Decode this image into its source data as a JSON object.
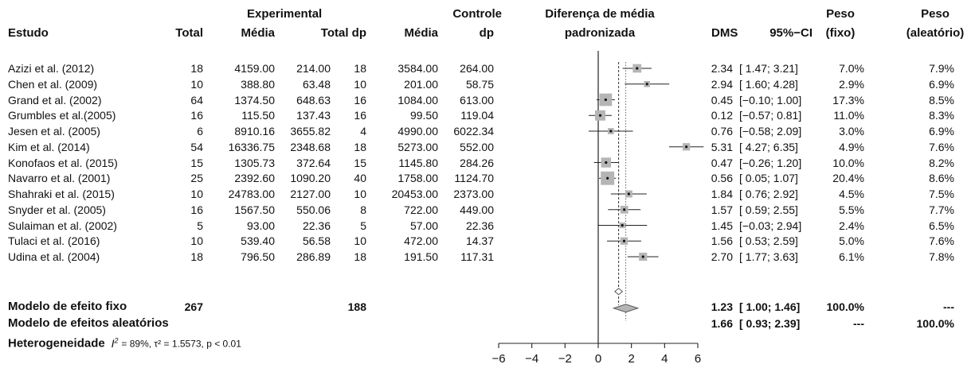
{
  "header": {
    "estudo": "Estudo",
    "group_exp": "Experimental",
    "total": "Total",
    "media": "Média",
    "total_dp": "Total dp",
    "media2": "Média",
    "controle_line1": "Controle",
    "controle_line2": "dp",
    "plot_line1": "Diferença de média",
    "plot_line2": "padronizada",
    "dms": "DMS",
    "ci": "95%−CI",
    "peso_fixo_1": "Peso",
    "peso_fixo_2": "(fixo)",
    "peso_aleat_1": "Peso",
    "peso_aleat_2": "(aleatório)"
  },
  "summary": {
    "fixed_label": "Modelo de efeito fixo",
    "fixed_total_exp": "267",
    "fixed_total_ctrl": "188",
    "fixed_dms": "1.23",
    "fixed_ci": "[ 1.00; 1.46]",
    "fixed_w_fixo": "100.0%",
    "fixed_w_aleat": "---",
    "random_label": "Modelo de efeitos aleatórios",
    "random_dms": "1.66",
    "random_ci": "[ 0.93; 2.39]",
    "random_w_fixo": "---",
    "random_w_aleat": "100.0%",
    "het_prefix": "Heterogeneidade",
    "het_stats": "= 89%, τ² = 1.5573, p < 0.01"
  },
  "chart_data": {
    "type": "forest",
    "xaxis": {
      "range": [
        -6,
        6
      ],
      "ticks": [
        -6,
        -4,
        -2,
        0,
        2,
        4,
        6
      ]
    },
    "fixed_effect": {
      "est": 1.23,
      "lo": 1.0,
      "hi": 1.46
    },
    "random_effect": {
      "est": 1.66,
      "lo": 0.93,
      "hi": 2.39
    },
    "studies": [
      {
        "name": "Azizi et al. (2012)",
        "n_e": "18",
        "m_e": "4159.00",
        "sd_e": "214.00",
        "n_c": "18",
        "m_c": "3584.00",
        "sd_c": "264.00",
        "dms": "2.34",
        "ci": "[ 1.47; 3.21]",
        "w_fixo": "7.0%",
        "w_aleat": "7.9%",
        "est": 2.34,
        "lo": 1.47,
        "hi": 3.21,
        "w": 7.0
      },
      {
        "name": "Chen et al. (2009)",
        "n_e": "10",
        "m_e": "388.80",
        "sd_e": "63.48",
        "n_c": "10",
        "m_c": "201.00",
        "sd_c": "58.75",
        "dms": "2.94",
        "ci": "[ 1.60; 4.28]",
        "w_fixo": "2.9%",
        "w_aleat": "6.9%",
        "est": 2.94,
        "lo": 1.6,
        "hi": 4.28,
        "w": 2.9
      },
      {
        "name": "Grand et al. (2002)",
        "n_e": "64",
        "m_e": "1374.50",
        "sd_e": "648.63",
        "n_c": "16",
        "m_c": "1084.00",
        "sd_c": "613.00",
        "dms": "0.45",
        "ci": "[−0.10; 1.00]",
        "w_fixo": "17.3%",
        "w_aleat": "8.5%",
        "est": 0.45,
        "lo": -0.1,
        "hi": 1.0,
        "w": 17.3
      },
      {
        "name": "Grumbles et al.(2005)",
        "n_e": "16",
        "m_e": "115.50",
        "sd_e": "137.43",
        "n_c": "16",
        "m_c": "99.50",
        "sd_c": "119.04",
        "dms": "0.12",
        "ci": "[−0.57; 0.81]",
        "w_fixo": "11.0%",
        "w_aleat": "8.3%",
        "est": 0.12,
        "lo": -0.57,
        "hi": 0.81,
        "w": 11.0
      },
      {
        "name": "Jesen et al. (2005)",
        "n_e": "6",
        "m_e": "8910.16",
        "sd_e": "3655.82",
        "n_c": "4",
        "m_c": "4990.00",
        "sd_c": "6022.34",
        "dms": "0.76",
        "ci": "[−0.58; 2.09]",
        "w_fixo": "3.0%",
        "w_aleat": "6.9%",
        "est": 0.76,
        "lo": -0.58,
        "hi": 2.09,
        "w": 3.0
      },
      {
        "name": "Kim et al. (2014)",
        "n_e": "54",
        "m_e": "16336.75",
        "sd_e": "2348.68",
        "n_c": "18",
        "m_c": "5273.00",
        "sd_c": "552.00",
        "dms": "5.31",
        "ci": "[ 4.27; 6.35]",
        "w_fixo": "4.9%",
        "w_aleat": "7.6%",
        "est": 5.31,
        "lo": 4.27,
        "hi": 6.35,
        "w": 4.9
      },
      {
        "name": "Konofaos et al. (2015)",
        "n_e": "15",
        "m_e": "1305.73",
        "sd_e": "372.64",
        "n_c": "15",
        "m_c": "1145.80",
        "sd_c": "284.26",
        "dms": "0.47",
        "ci": "[−0.26; 1.20]",
        "w_fixo": "10.0%",
        "w_aleat": "8.2%",
        "est": 0.47,
        "lo": -0.26,
        "hi": 1.2,
        "w": 10.0
      },
      {
        "name": "Navarro et al. (2001)",
        "n_e": "25",
        "m_e": "2392.60",
        "sd_e": "1090.20",
        "n_c": "40",
        "m_c": "1758.00",
        "sd_c": "1124.70",
        "dms": "0.56",
        "ci": "[ 0.05; 1.07]",
        "w_fixo": "20.4%",
        "w_aleat": "8.6%",
        "est": 0.56,
        "lo": 0.05,
        "hi": 1.07,
        "w": 20.4
      },
      {
        "name": "Shahraki et al. (2015)",
        "n_e": "10",
        "m_e": "24783.00",
        "sd_e": "2127.00",
        "n_c": "10",
        "m_c": "20453.00",
        "sd_c": "2373.00",
        "dms": "1.84",
        "ci": "[ 0.76; 2.92]",
        "w_fixo": "4.5%",
        "w_aleat": "7.5%",
        "est": 1.84,
        "lo": 0.76,
        "hi": 2.92,
        "w": 4.5
      },
      {
        "name": "Snyder et al. (2005)",
        "n_e": "16",
        "m_e": "1567.50",
        "sd_e": "550.06",
        "n_c": "8",
        "m_c": "722.00",
        "sd_c": "449.00",
        "dms": "1.57",
        "ci": "[ 0.59; 2.55]",
        "w_fixo": "5.5%",
        "w_aleat": "7.7%",
        "est": 1.57,
        "lo": 0.59,
        "hi": 2.55,
        "w": 5.5
      },
      {
        "name": "Sulaiman et al. (2002)",
        "n_e": "5",
        "m_e": "93.00",
        "sd_e": "22.36",
        "n_c": "5",
        "m_c": "57.00",
        "sd_c": "22.36",
        "dms": "1.45",
        "ci": "[−0.03; 2.94]",
        "w_fixo": "2.4%",
        "w_aleat": "6.5%",
        "est": 1.45,
        "lo": -0.03,
        "hi": 2.94,
        "w": 2.4
      },
      {
        "name": "Tulaci et al. (2016)",
        "n_e": "10",
        "m_e": "539.40",
        "sd_e": "56.58",
        "n_c": "10",
        "m_c": "472.00",
        "sd_c": "14.37",
        "dms": "1.56",
        "ci": "[ 0.53; 2.59]",
        "w_fixo": "5.0%",
        "w_aleat": "7.6%",
        "est": 1.56,
        "lo": 0.53,
        "hi": 2.59,
        "w": 5.0
      },
      {
        "name": "Udina et al. (2004)",
        "n_e": "18",
        "m_e": "796.50",
        "sd_e": "286.89",
        "n_c": "18",
        "m_c": "191.50",
        "sd_c": "117.31",
        "dms": "2.70",
        "ci": "[ 1.77; 3.63]",
        "w_fixo": "6.1%",
        "w_aleat": "7.8%",
        "est": 2.7,
        "lo": 1.77,
        "hi": 3.63,
        "w": 6.1
      }
    ]
  }
}
